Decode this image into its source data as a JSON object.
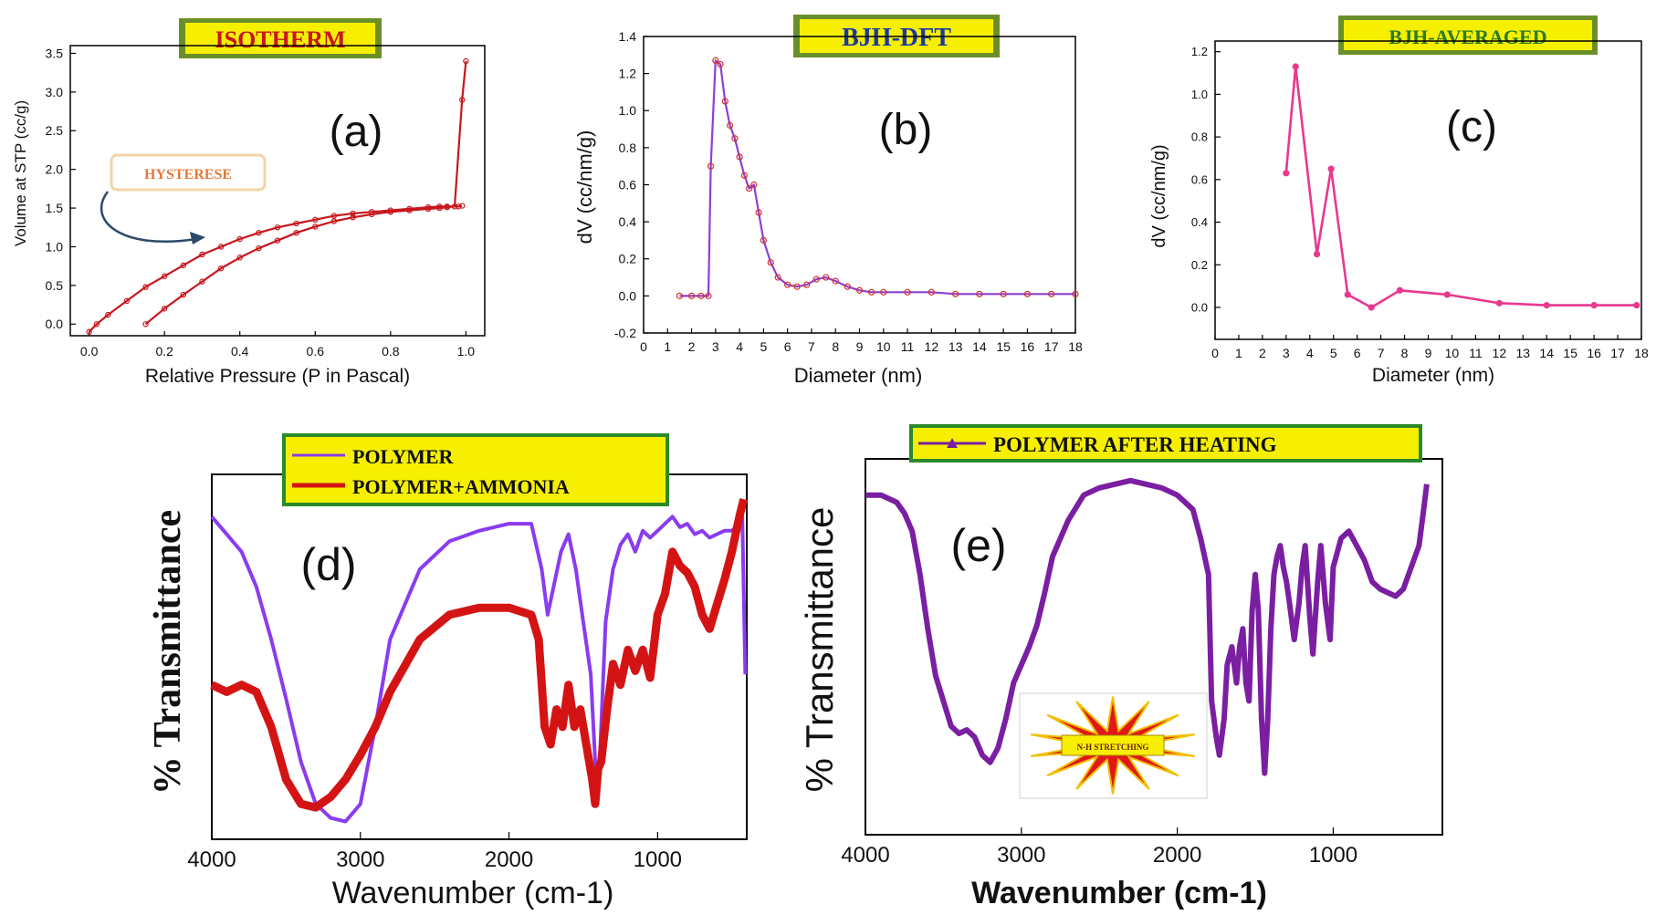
{
  "charts": {
    "a": {
      "type": "line",
      "banner": "ISOTHERM",
      "label": "(a)",
      "xlabel": "Relative Pressure (P in Pascal)",
      "ylabel": "Volume at STP (cc/g)",
      "xlim": [
        -0.05,
        1.05
      ],
      "ylim": [
        -0.15,
        3.6
      ],
      "xticks": [
        "0.0",
        "0.2",
        "0.4",
        "0.6",
        "0.8",
        "1.0"
      ],
      "xtick_values": [
        0.0,
        0.2,
        0.4,
        0.6,
        0.8,
        1.0
      ],
      "yticks": [
        "0.0",
        "0.5",
        "1.0",
        "1.5",
        "2.0",
        "2.5",
        "3.0",
        "3.5"
      ],
      "ytick_values": [
        0.0,
        0.5,
        1.0,
        1.5,
        2.0,
        2.5,
        3.0,
        3.5
      ],
      "annotation": "HYSTERESE",
      "color": "#c8161d",
      "annotation_text_color": "#e07a3a",
      "arrow_color": "#2c4a6b",
      "series": [
        {
          "x": [
            0.0,
            0.02,
            0.05,
            0.1,
            0.15,
            0.2,
            0.25,
            0.3,
            0.35,
            0.4,
            0.45,
            0.5,
            0.55,
            0.6,
            0.65,
            0.7,
            0.75,
            0.8,
            0.85,
            0.9,
            0.93,
            0.95,
            0.98,
            0.99
          ],
          "y": [
            -0.1,
            0.0,
            0.12,
            0.3,
            0.48,
            0.62,
            0.76,
            0.9,
            1.0,
            1.1,
            1.18,
            1.25,
            1.3,
            1.35,
            1.4,
            1.43,
            1.45,
            1.47,
            1.49,
            1.51,
            1.52,
            1.52,
            1.52,
            1.53
          ]
        },
        {
          "x": [
            0.15,
            0.2,
            0.25,
            0.3,
            0.35,
            0.4,
            0.45,
            0.5,
            0.55,
            0.6,
            0.65,
            0.7,
            0.75,
            0.8,
            0.85,
            0.9,
            0.93,
            0.95,
            0.97,
            0.99,
            1.0
          ],
          "y": [
            0.0,
            0.2,
            0.38,
            0.55,
            0.72,
            0.86,
            0.98,
            1.08,
            1.18,
            1.26,
            1.33,
            1.38,
            1.42,
            1.45,
            1.47,
            1.49,
            1.5,
            1.51,
            1.52,
            2.9,
            3.4
          ]
        }
      ]
    },
    "b": {
      "type": "line",
      "banner": "BJH-DFT",
      "label": "(b)",
      "xlabel": "Diameter (nm)",
      "ylabel": "dV (cc/nm/g)",
      "xlim": [
        0,
        18
      ],
      "ylim": [
        -0.2,
        1.4
      ],
      "xticks": [
        "0",
        "1",
        "2",
        "3",
        "4",
        "5",
        "6",
        "7",
        "8",
        "9",
        "10",
        "11",
        "12",
        "13",
        "14",
        "15",
        "16",
        "17",
        "18"
      ],
      "yticks": [
        "-0.2",
        "0.0",
        "0.2",
        "0.4",
        "0.6",
        "0.8",
        "1.0",
        "1.2",
        "1.4"
      ],
      "ytick_values": [
        -0.2,
        0.0,
        0.2,
        0.4,
        0.6,
        0.8,
        1.0,
        1.2,
        1.4
      ],
      "line_color": "#8e3fd1",
      "marker_color": "#d8302a",
      "x": [
        1.5,
        2.0,
        2.4,
        2.7,
        2.8,
        3.0,
        3.2,
        3.4,
        3.6,
        3.8,
        4.0,
        4.2,
        4.4,
        4.6,
        4.8,
        5.0,
        5.3,
        5.6,
        6.0,
        6.4,
        6.8,
        7.2,
        7.6,
        8.0,
        8.5,
        9.0,
        9.5,
        10.0,
        11.0,
        12.0,
        13.0,
        14.0,
        15.0,
        16.0,
        17.0,
        18.0
      ],
      "y": [
        0.0,
        0.0,
        0.0,
        0.0,
        0.7,
        1.27,
        1.25,
        1.05,
        0.92,
        0.85,
        0.75,
        0.65,
        0.58,
        0.6,
        0.45,
        0.3,
        0.18,
        0.1,
        0.06,
        0.05,
        0.06,
        0.09,
        0.1,
        0.08,
        0.05,
        0.03,
        0.02,
        0.02,
        0.02,
        0.02,
        0.01,
        0.01,
        0.01,
        0.01,
        0.01,
        0.01
      ]
    },
    "c": {
      "type": "line",
      "banner": "BJH-AVERAGED",
      "label": "(c)",
      "xlabel": "Diameter (nm)",
      "ylabel": "dV (cc/nm/g)",
      "xlim": [
        0,
        18
      ],
      "ylim": [
        -0.15,
        1.25
      ],
      "xticks": [
        "0",
        "1",
        "2",
        "3",
        "4",
        "5",
        "6",
        "7",
        "8",
        "9",
        "10",
        "11",
        "12",
        "13",
        "14",
        "15",
        "16",
        "17",
        "18"
      ],
      "yticks": [
        "0.0",
        "0.2",
        "0.4",
        "0.6",
        "0.8",
        "1.0",
        "1.2"
      ],
      "ytick_values": [
        0.0,
        0.2,
        0.4,
        0.6,
        0.8,
        1.0,
        1.2
      ],
      "color": "#e8388f",
      "x": [
        3.0,
        3.4,
        4.3,
        4.9,
        5.6,
        6.6,
        7.8,
        9.8,
        12.0,
        14.0,
        16.0,
        17.8
      ],
      "y": [
        0.63,
        1.13,
        0.25,
        0.65,
        0.06,
        0.0,
        0.08,
        0.06,
        0.02,
        0.01,
        0.01,
        0.01
      ]
    },
    "d": {
      "type": "line",
      "label": "(d)",
      "xlabel": "Wavenumber (cm-1)",
      "ylabel": "% Transmittance",
      "xlim": [
        4000,
        400
      ],
      "ylim": [
        0,
        100
      ],
      "xticks": [
        "4000",
        "3000",
        "2000",
        "1000"
      ],
      "xtick_values": [
        4000,
        3000,
        2000,
        1000
      ],
      "legend_position": "top",
      "series": [
        {
          "name": "POLYMER",
          "color": "#8a3cf0",
          "x": [
            4000,
            3900,
            3800,
            3700,
            3600,
            3500,
            3400,
            3300,
            3200,
            3100,
            3000,
            2900,
            2800,
            2600,
            2400,
            2200,
            2000,
            1850,
            1780,
            1740,
            1700,
            1650,
            1600,
            1550,
            1500,
            1450,
            1420,
            1400,
            1380,
            1350,
            1300,
            1250,
            1200,
            1150,
            1100,
            1050,
            1000,
            950,
            900,
            850,
            800,
            750,
            700,
            650,
            600,
            550,
            500,
            450,
            430,
            410
          ],
          "y": [
            90,
            85,
            80,
            70,
            55,
            38,
            20,
            8,
            4,
            3,
            8,
            30,
            55,
            75,
            83,
            86,
            88,
            88,
            75,
            62,
            70,
            80,
            85,
            75,
            60,
            45,
            20,
            10,
            30,
            60,
            75,
            82,
            85,
            80,
            86,
            84,
            86,
            88,
            90,
            87,
            88,
            85,
            86,
            84,
            85,
            86,
            86,
            88,
            90,
            45
          ]
        },
        {
          "name": "POLYMER+AMMONIA",
          "color": "#d41414",
          "x": [
            4000,
            3900,
            3800,
            3700,
            3600,
            3500,
            3400,
            3300,
            3200,
            3100,
            3000,
            2900,
            2800,
            2600,
            2400,
            2200,
            2000,
            1850,
            1800,
            1760,
            1720,
            1680,
            1640,
            1600,
            1560,
            1520,
            1480,
            1440,
            1420,
            1400,
            1380,
            1340,
            1300,
            1250,
            1200,
            1150,
            1100,
            1050,
            1000,
            950,
            900,
            850,
            800,
            750,
            700,
            650,
            600,
            550,
            500,
            450,
            420
          ],
          "y": [
            42,
            40,
            42,
            40,
            30,
            15,
            8,
            7,
            10,
            15,
            22,
            30,
            40,
            55,
            62,
            64,
            64,
            62,
            55,
            30,
            25,
            35,
            30,
            42,
            30,
            35,
            25,
            15,
            8,
            18,
            20,
            35,
            48,
            42,
            52,
            46,
            52,
            44,
            62,
            68,
            80,
            76,
            74,
            70,
            62,
            58,
            65,
            72,
            80,
            90,
            95
          ]
        }
      ]
    },
    "e": {
      "type": "line",
      "label": "(e)",
      "xlabel": "Wavenumber (cm-1)",
      "ylabel": "% Transmittance",
      "xlim": [
        4000,
        300
      ],
      "ylim": [
        0,
        100
      ],
      "xticks": [
        "4000",
        "3000",
        "2000",
        "1000"
      ],
      "xtick_values": [
        4000,
        3000,
        2000,
        1000
      ],
      "legend_position": "top",
      "inset_label": "N-H STRETCHING",
      "series": [
        {
          "name": "POLYMER AFTER HEATING",
          "color": "#7b1fa2",
          "x": [
            4000,
            3900,
            3800,
            3750,
            3700,
            3650,
            3600,
            3550,
            3500,
            3450,
            3400,
            3350,
            3300,
            3250,
            3200,
            3150,
            3100,
            3050,
            3000,
            2950,
            2900,
            2850,
            2800,
            2700,
            2600,
            2500,
            2400,
            2300,
            2200,
            2100,
            2000,
            1900,
            1850,
            1800,
            1780,
            1750,
            1730,
            1700,
            1680,
            1650,
            1620,
            1600,
            1580,
            1560,
            1540,
            1520,
            1500,
            1480,
            1460,
            1440,
            1420,
            1400,
            1380,
            1360,
            1340,
            1320,
            1300,
            1280,
            1250,
            1220,
            1200,
            1180,
            1150,
            1130,
            1100,
            1080,
            1050,
            1020,
            1000,
            950,
            900,
            850,
            800,
            750,
            700,
            650,
            600,
            550,
            500,
            450,
            420,
            400
          ],
          "y": [
            92,
            92,
            90,
            87,
            82,
            70,
            55,
            42,
            35,
            28,
            26,
            27,
            25,
            20,
            18,
            22,
            30,
            40,
            45,
            50,
            56,
            65,
            75,
            85,
            92,
            94,
            95,
            96,
            95,
            94,
            92,
            88,
            80,
            70,
            35,
            25,
            20,
            30,
            45,
            50,
            40,
            50,
            55,
            40,
            35,
            60,
            70,
            60,
            30,
            15,
            30,
            55,
            70,
            75,
            78,
            72,
            68,
            62,
            52,
            62,
            72,
            78,
            58,
            48,
            68,
            78,
            62,
            52,
            72,
            80,
            82,
            78,
            74,
            68,
            66,
            65,
            64,
            66,
            72,
            78,
            88,
            95
          ]
        }
      ]
    }
  }
}
